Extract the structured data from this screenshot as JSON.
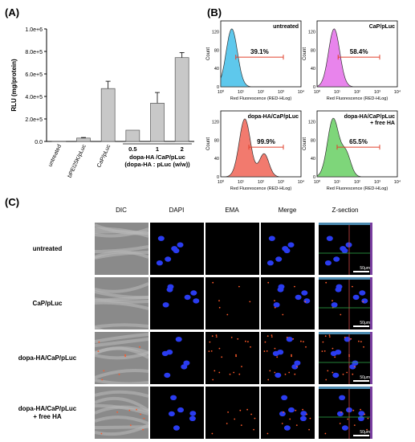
{
  "panels": {
    "a": "(A)",
    "b": "(B)",
    "c": "(C)"
  },
  "chart_data": [
    {
      "type": "bar",
      "ylabel": "RLU (mg/protein)",
      "ylim": [
        0,
        1000000
      ],
      "yticks": [
        "0.0",
        "2.0e+5",
        "4.0e+5",
        "6.0e+5",
        "8.0e+5",
        "1.0e+6"
      ],
      "categories": [
        "untreated",
        "bPEI25K/pLuc",
        "CaP/pLuc",
        "0.5",
        "1",
        "2"
      ],
      "values": [
        2000,
        30000,
        470000,
        100000,
        340000,
        745000
      ],
      "errors": [
        0,
        5000,
        65000,
        0,
        95000,
        45000
      ],
      "group_label_1": "dopa-HA /CaP/pLuc",
      "group_label_2": "(dopa-HA : pLuc (w/w))",
      "bar_color": "#c8c8c8"
    },
    {
      "type": "histogram",
      "xlabel": "Red Fluorescence (RED-HLog)",
      "ylabel": "Count",
      "yticks": [
        "0",
        "40",
        "80",
        "120"
      ],
      "xticks": [
        "10⁰",
        "10¹",
        "10²",
        "10³",
        "10⁴"
      ],
      "subplots": [
        {
          "title": "untreated",
          "percent": "39.1%",
          "color": "#5ec8ec",
          "peak": 0.55
        },
        {
          "title": "CaP/pLuc",
          "percent": "58.4%",
          "color": "#e884ec",
          "peak": 0.85
        },
        {
          "title": "dopa-HA/CaP/pLuc",
          "percent": "99.9%",
          "color": "#f27a6e",
          "peak": 1.2
        },
        {
          "title": "dopa-HA/CaP/pLuc\n+ free HA",
          "percent": "65.5%",
          "color": "#7ed67a",
          "peak": 0.8
        }
      ]
    }
  ],
  "microscopy": {
    "columns": [
      "DIC",
      "DAPI",
      "EMA",
      "Merge",
      "Z-section"
    ],
    "rows": [
      "untreated",
      "CaP/pLuc",
      "dopa-HA/CaP/pLuc",
      "dopa-HA/CaP/pLuc\n+ free HA"
    ],
    "scale": "50μm"
  }
}
